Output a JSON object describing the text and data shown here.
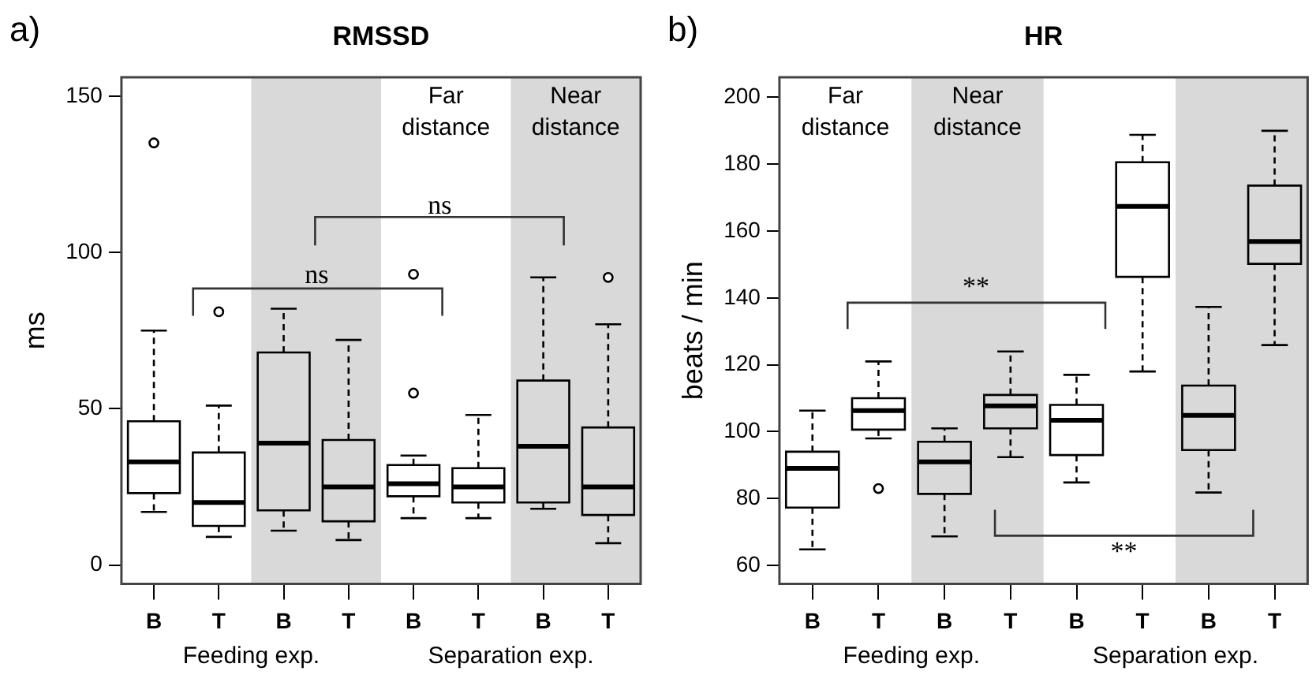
{
  "chart_data": [
    {
      "type": "box",
      "title": "RMSSD",
      "ylabel": "ms",
      "categories": [
        "B",
        "T",
        "B",
        "T",
        "B",
        "T",
        "B",
        "T"
      ],
      "ylim": [
        -6,
        156
      ],
      "yticks": [
        0,
        50,
        100,
        150
      ],
      "color": "#000000",
      "boxes": [
        {
          "low": 17,
          "q1": 23,
          "median": 33,
          "q3": 46,
          "high": 75,
          "outliers": [
            135
          ]
        },
        {
          "low": 9,
          "q1": 12.5,
          "median": 20,
          "q3": 36,
          "high": 51,
          "outliers": [
            81
          ]
        },
        {
          "low": 11,
          "q1": 17.5,
          "median": 39,
          "q3": 68,
          "high": 82
        },
        {
          "low": 8,
          "q1": 14,
          "median": 25,
          "q3": 40,
          "high": 72
        },
        {
          "low": 15,
          "q1": 22,
          "median": 26,
          "q3": 32,
          "high": 35,
          "outliers": [
            93,
            55
          ]
        },
        {
          "low": 15,
          "q1": 20,
          "median": 25,
          "q3": 31,
          "high": 48
        },
        {
          "low": 18,
          "q1": 20,
          "median": 38,
          "q3": 59,
          "high": 92
        },
        {
          "low": 7,
          "q1": 16,
          "median": 25,
          "q3": 44,
          "high": 77,
          "outliers": [
            92
          ]
        }
      ],
      "annotations": [
        "a)",
        "Feeding exp.",
        "Separation exp.",
        "Far distance",
        "Near distance",
        "ns",
        "ns"
      ],
      "grid": false,
      "marker": "circle"
    },
    {
      "type": "box",
      "title": "HR",
      "ylabel": "beats / min",
      "categories": [
        "B",
        "T",
        "B",
        "T",
        "B",
        "T",
        "B",
        "T"
      ],
      "ylim": [
        54.5,
        206
      ],
      "yticks": [
        60,
        80,
        100,
        120,
        140,
        160,
        180,
        200
      ],
      "color": "#000000",
      "boxes": [
        {
          "low": 64.8,
          "q1": 77.3,
          "median": 89,
          "q3": 94,
          "high": 106.3
        },
        {
          "low": 98,
          "q1": 100.6,
          "median": 106.3,
          "q3": 110,
          "high": 121,
          "outliers": [
            83
          ]
        },
        {
          "low": 68.7,
          "q1": 81.4,
          "median": 91,
          "q3": 97,
          "high": 101
        },
        {
          "low": 92.4,
          "q1": 101,
          "median": 107.7,
          "q3": 111,
          "high": 124
        },
        {
          "low": 84.8,
          "q1": 93,
          "median": 103.4,
          "q3": 108,
          "high": 117
        },
        {
          "low": 118,
          "q1": 146.3,
          "median": 167.4,
          "q3": 180.6,
          "high": 188.8
        },
        {
          "low": 81.8,
          "q1": 94.5,
          "median": 104.9,
          "q3": 113.8,
          "high": 137.3
        },
        {
          "low": 125.9,
          "q1": 150.2,
          "median": 156.9,
          "q3": 173.6,
          "high": 190
        }
      ],
      "annotations": [
        "b)",
        "Feeding exp.",
        "Separation exp.",
        "Far distance",
        "Near distance",
        "**",
        "**"
      ],
      "grid": false,
      "marker": "circle"
    }
  ]
}
